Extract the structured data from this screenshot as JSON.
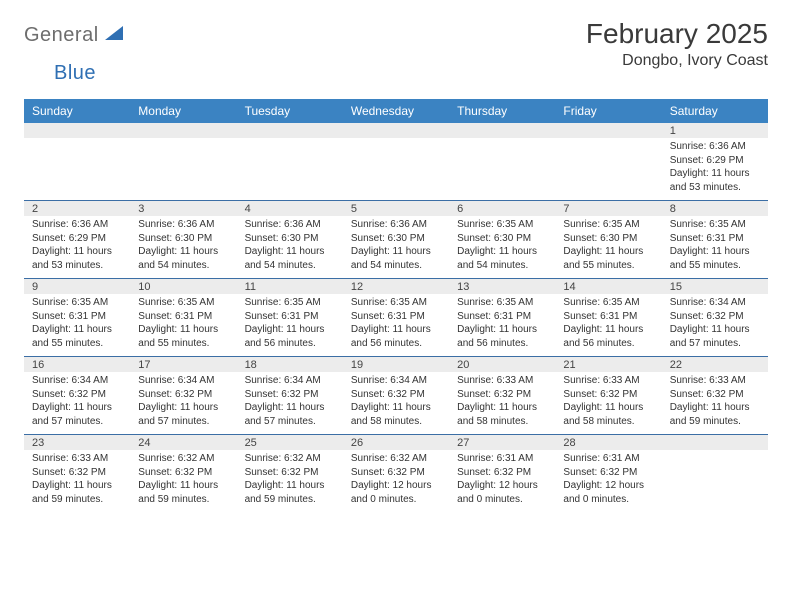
{
  "brand": {
    "gray": "General",
    "blue": "Blue"
  },
  "title": "February 2025",
  "location": "Dongbo, Ivory Coast",
  "colors": {
    "header_bg": "#3b83c2",
    "header_text": "#ffffff",
    "daynum_bg": "#ececec",
    "week_border": "#3b6ea5",
    "logo_gray": "#6d6d6d",
    "logo_blue": "#2f6fb3"
  },
  "day_names": [
    "Sunday",
    "Monday",
    "Tuesday",
    "Wednesday",
    "Thursday",
    "Friday",
    "Saturday"
  ],
  "weeks": [
    [
      {
        "n": "",
        "sr": "",
        "ss": "",
        "dl": ""
      },
      {
        "n": "",
        "sr": "",
        "ss": "",
        "dl": ""
      },
      {
        "n": "",
        "sr": "",
        "ss": "",
        "dl": ""
      },
      {
        "n": "",
        "sr": "",
        "ss": "",
        "dl": ""
      },
      {
        "n": "",
        "sr": "",
        "ss": "",
        "dl": ""
      },
      {
        "n": "",
        "sr": "",
        "ss": "",
        "dl": ""
      },
      {
        "n": "1",
        "sr": "Sunrise: 6:36 AM",
        "ss": "Sunset: 6:29 PM",
        "dl": "Daylight: 11 hours and 53 minutes."
      }
    ],
    [
      {
        "n": "2",
        "sr": "Sunrise: 6:36 AM",
        "ss": "Sunset: 6:29 PM",
        "dl": "Daylight: 11 hours and 53 minutes."
      },
      {
        "n": "3",
        "sr": "Sunrise: 6:36 AM",
        "ss": "Sunset: 6:30 PM",
        "dl": "Daylight: 11 hours and 54 minutes."
      },
      {
        "n": "4",
        "sr": "Sunrise: 6:36 AM",
        "ss": "Sunset: 6:30 PM",
        "dl": "Daylight: 11 hours and 54 minutes."
      },
      {
        "n": "5",
        "sr": "Sunrise: 6:36 AM",
        "ss": "Sunset: 6:30 PM",
        "dl": "Daylight: 11 hours and 54 minutes."
      },
      {
        "n": "6",
        "sr": "Sunrise: 6:35 AM",
        "ss": "Sunset: 6:30 PM",
        "dl": "Daylight: 11 hours and 54 minutes."
      },
      {
        "n": "7",
        "sr": "Sunrise: 6:35 AM",
        "ss": "Sunset: 6:30 PM",
        "dl": "Daylight: 11 hours and 55 minutes."
      },
      {
        "n": "8",
        "sr": "Sunrise: 6:35 AM",
        "ss": "Sunset: 6:31 PM",
        "dl": "Daylight: 11 hours and 55 minutes."
      }
    ],
    [
      {
        "n": "9",
        "sr": "Sunrise: 6:35 AM",
        "ss": "Sunset: 6:31 PM",
        "dl": "Daylight: 11 hours and 55 minutes."
      },
      {
        "n": "10",
        "sr": "Sunrise: 6:35 AM",
        "ss": "Sunset: 6:31 PM",
        "dl": "Daylight: 11 hours and 55 minutes."
      },
      {
        "n": "11",
        "sr": "Sunrise: 6:35 AM",
        "ss": "Sunset: 6:31 PM",
        "dl": "Daylight: 11 hours and 56 minutes."
      },
      {
        "n": "12",
        "sr": "Sunrise: 6:35 AM",
        "ss": "Sunset: 6:31 PM",
        "dl": "Daylight: 11 hours and 56 minutes."
      },
      {
        "n": "13",
        "sr": "Sunrise: 6:35 AM",
        "ss": "Sunset: 6:31 PM",
        "dl": "Daylight: 11 hours and 56 minutes."
      },
      {
        "n": "14",
        "sr": "Sunrise: 6:35 AM",
        "ss": "Sunset: 6:31 PM",
        "dl": "Daylight: 11 hours and 56 minutes."
      },
      {
        "n": "15",
        "sr": "Sunrise: 6:34 AM",
        "ss": "Sunset: 6:32 PM",
        "dl": "Daylight: 11 hours and 57 minutes."
      }
    ],
    [
      {
        "n": "16",
        "sr": "Sunrise: 6:34 AM",
        "ss": "Sunset: 6:32 PM",
        "dl": "Daylight: 11 hours and 57 minutes."
      },
      {
        "n": "17",
        "sr": "Sunrise: 6:34 AM",
        "ss": "Sunset: 6:32 PM",
        "dl": "Daylight: 11 hours and 57 minutes."
      },
      {
        "n": "18",
        "sr": "Sunrise: 6:34 AM",
        "ss": "Sunset: 6:32 PM",
        "dl": "Daylight: 11 hours and 57 minutes."
      },
      {
        "n": "19",
        "sr": "Sunrise: 6:34 AM",
        "ss": "Sunset: 6:32 PM",
        "dl": "Daylight: 11 hours and 58 minutes."
      },
      {
        "n": "20",
        "sr": "Sunrise: 6:33 AM",
        "ss": "Sunset: 6:32 PM",
        "dl": "Daylight: 11 hours and 58 minutes."
      },
      {
        "n": "21",
        "sr": "Sunrise: 6:33 AM",
        "ss": "Sunset: 6:32 PM",
        "dl": "Daylight: 11 hours and 58 minutes."
      },
      {
        "n": "22",
        "sr": "Sunrise: 6:33 AM",
        "ss": "Sunset: 6:32 PM",
        "dl": "Daylight: 11 hours and 59 minutes."
      }
    ],
    [
      {
        "n": "23",
        "sr": "Sunrise: 6:33 AM",
        "ss": "Sunset: 6:32 PM",
        "dl": "Daylight: 11 hours and 59 minutes."
      },
      {
        "n": "24",
        "sr": "Sunrise: 6:32 AM",
        "ss": "Sunset: 6:32 PM",
        "dl": "Daylight: 11 hours and 59 minutes."
      },
      {
        "n": "25",
        "sr": "Sunrise: 6:32 AM",
        "ss": "Sunset: 6:32 PM",
        "dl": "Daylight: 11 hours and 59 minutes."
      },
      {
        "n": "26",
        "sr": "Sunrise: 6:32 AM",
        "ss": "Sunset: 6:32 PM",
        "dl": "Daylight: 12 hours and 0 minutes."
      },
      {
        "n": "27",
        "sr": "Sunrise: 6:31 AM",
        "ss": "Sunset: 6:32 PM",
        "dl": "Daylight: 12 hours and 0 minutes."
      },
      {
        "n": "28",
        "sr": "Sunrise: 6:31 AM",
        "ss": "Sunset: 6:32 PM",
        "dl": "Daylight: 12 hours and 0 minutes."
      },
      {
        "n": "",
        "sr": "",
        "ss": "",
        "dl": ""
      }
    ]
  ]
}
